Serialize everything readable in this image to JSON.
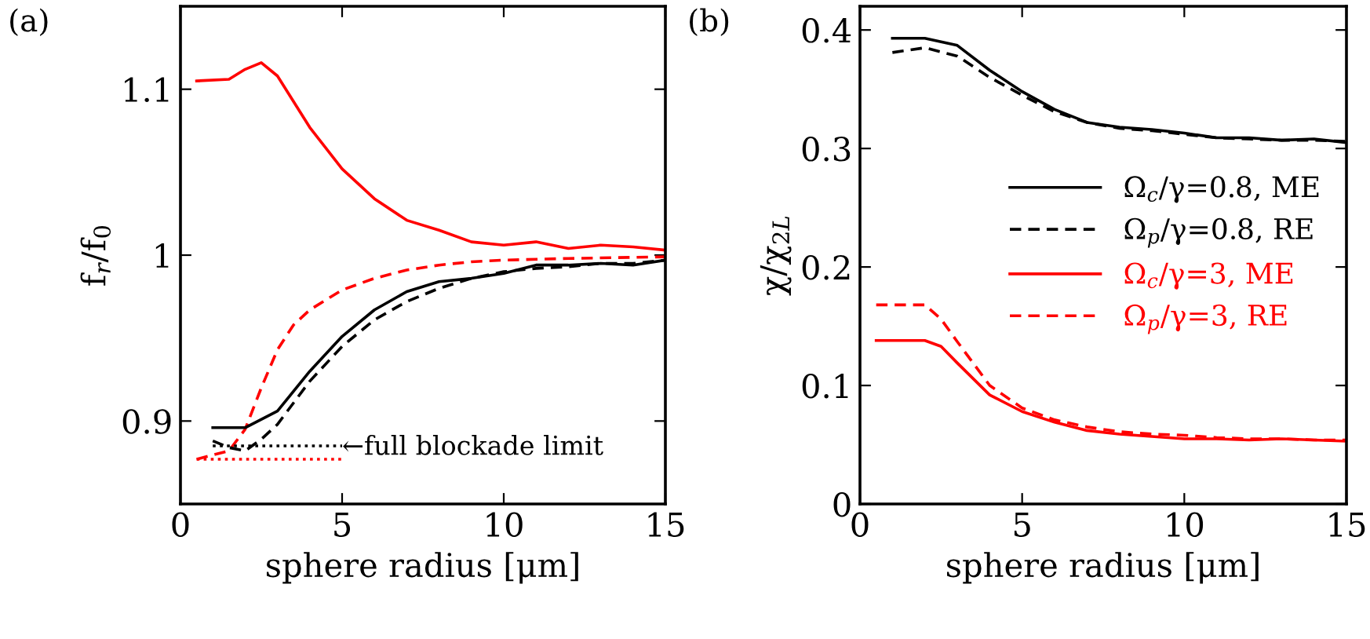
{
  "chart_data": [
    {
      "type": "line",
      "title": "(a)",
      "xlabel": "sphere radius [μm]",
      "ylabel": "f$_{r}$/f$_{0}$",
      "xlim": [
        0,
        15
      ],
      "ylim": [
        0.85,
        1.15
      ],
      "xticks": [
        0,
        5,
        10,
        15
      ],
      "yticks": [
        0.9,
        1,
        1.1
      ],
      "grid": false,
      "legend": false,
      "annotations": [
        {
          "text": "←full blockade limit",
          "x": 5,
          "y": 0.884
        }
      ],
      "series": [
        {
          "color": "#ff0000",
          "line_style": "solid",
          "x": [
            0.5,
            1.5,
            2,
            2.5,
            3,
            4,
            5,
            6,
            7,
            8,
            9,
            10,
            11,
            12,
            13,
            14,
            15
          ],
          "values": [
            1.105,
            1.106,
            1.112,
            1.116,
            1.108,
            1.077,
            1.052,
            1.034,
            1.021,
            1.015,
            1.008,
            1.006,
            1.008,
            1.004,
            1.006,
            1.005,
            1.003
          ]
        },
        {
          "color": "#ff0000",
          "line_style": "dashed",
          "x": [
            0.5,
            1.5,
            2,
            2.5,
            3,
            3.5,
            4,
            5,
            6,
            7,
            8,
            9,
            10,
            12,
            15
          ],
          "values": [
            0.877,
            0.882,
            0.895,
            0.92,
            0.943,
            0.958,
            0.967,
            0.979,
            0.986,
            0.991,
            0.994,
            0.996,
            0.997,
            0.998,
            0.999
          ]
        },
        {
          "color": "#000000",
          "line_style": "solid",
          "x": [
            1,
            2,
            3,
            4,
            5,
            6,
            7,
            8,
            9,
            10,
            11,
            12,
            13,
            14,
            15
          ],
          "values": [
            0.896,
            0.896,
            0.906,
            0.93,
            0.951,
            0.967,
            0.978,
            0.984,
            0.986,
            0.989,
            0.994,
            0.994,
            0.995,
            0.994,
            0.997
          ]
        },
        {
          "color": "#000000",
          "line_style": "dashed",
          "x": [
            1,
            1.5,
            2,
            2.5,
            3,
            4,
            5,
            6,
            7,
            8,
            9,
            10,
            11,
            12,
            13,
            14,
            15
          ],
          "values": [
            0.888,
            0.884,
            0.882,
            0.889,
            0.898,
            0.924,
            0.945,
            0.961,
            0.972,
            0.98,
            0.986,
            0.99,
            0.992,
            0.993,
            0.995,
            0.995,
            0.997
          ]
        },
        {
          "color": "#000000",
          "line_style": "dotted",
          "x": [
            1,
            5
          ],
          "values": [
            0.885,
            0.885
          ]
        },
        {
          "color": "#ff0000",
          "line_style": "dotted",
          "x": [
            0.5,
            5
          ],
          "values": [
            0.877,
            0.877
          ]
        }
      ]
    },
    {
      "type": "line",
      "title": "(b)",
      "xlabel": "sphere radius [μm]",
      "ylabel": "χ/χ$_{2L}$",
      "xlim": [
        0,
        15
      ],
      "ylim": [
        0,
        0.42
      ],
      "xticks": [
        0,
        5,
        10,
        15
      ],
      "yticks": [
        0,
        0.1,
        0.2,
        0.3,
        0.4
      ],
      "grid": false,
      "legend": "right",
      "series": [
        {
          "name": "Ω$_{c}$/γ=0.8, ME",
          "color": "#000000",
          "line_style": "solid",
          "x": [
            1,
            2,
            3,
            4,
            5,
            6,
            7,
            8,
            9,
            10,
            11,
            12,
            13,
            14,
            15
          ],
          "values": [
            0.393,
            0.393,
            0.387,
            0.366,
            0.348,
            0.333,
            0.322,
            0.318,
            0.316,
            0.313,
            0.309,
            0.309,
            0.307,
            0.308,
            0.305
          ]
        },
        {
          "name": "Ω$_{p}$/γ=0.8, RE",
          "color": "#000000",
          "line_style": "dashed",
          "x": [
            1,
            2,
            3,
            4,
            5,
            6,
            7,
            8,
            9,
            10,
            11,
            12,
            13,
            14,
            15
          ],
          "values": [
            0.381,
            0.385,
            0.378,
            0.36,
            0.345,
            0.331,
            0.322,
            0.317,
            0.315,
            0.312,
            0.309,
            0.308,
            0.307,
            0.307,
            0.306
          ]
        },
        {
          "name": "Ω$_{c}$/γ=3, ME",
          "color": "#ff0000",
          "line_style": "solid",
          "x": [
            0.5,
            2,
            2.5,
            3,
            4,
            5,
            6,
            7,
            8,
            9,
            10,
            11,
            12,
            13,
            14,
            15
          ],
          "values": [
            0.138,
            0.138,
            0.133,
            0.119,
            0.092,
            0.078,
            0.069,
            0.062,
            0.059,
            0.057,
            0.055,
            0.055,
            0.054,
            0.055,
            0.054,
            0.053
          ]
        },
        {
          "name": "Ω$_{p}$/γ=3, RE",
          "color": "#ff0000",
          "line_style": "dashed",
          "x": [
            0.5,
            2,
            2.5,
            3,
            4,
            5,
            6,
            7,
            8,
            9,
            10,
            11,
            12,
            13,
            14,
            15
          ],
          "values": [
            0.168,
            0.168,
            0.156,
            0.137,
            0.1,
            0.081,
            0.071,
            0.065,
            0.061,
            0.059,
            0.058,
            0.056,
            0.055,
            0.055,
            0.054,
            0.054
          ]
        }
      ]
    }
  ]
}
